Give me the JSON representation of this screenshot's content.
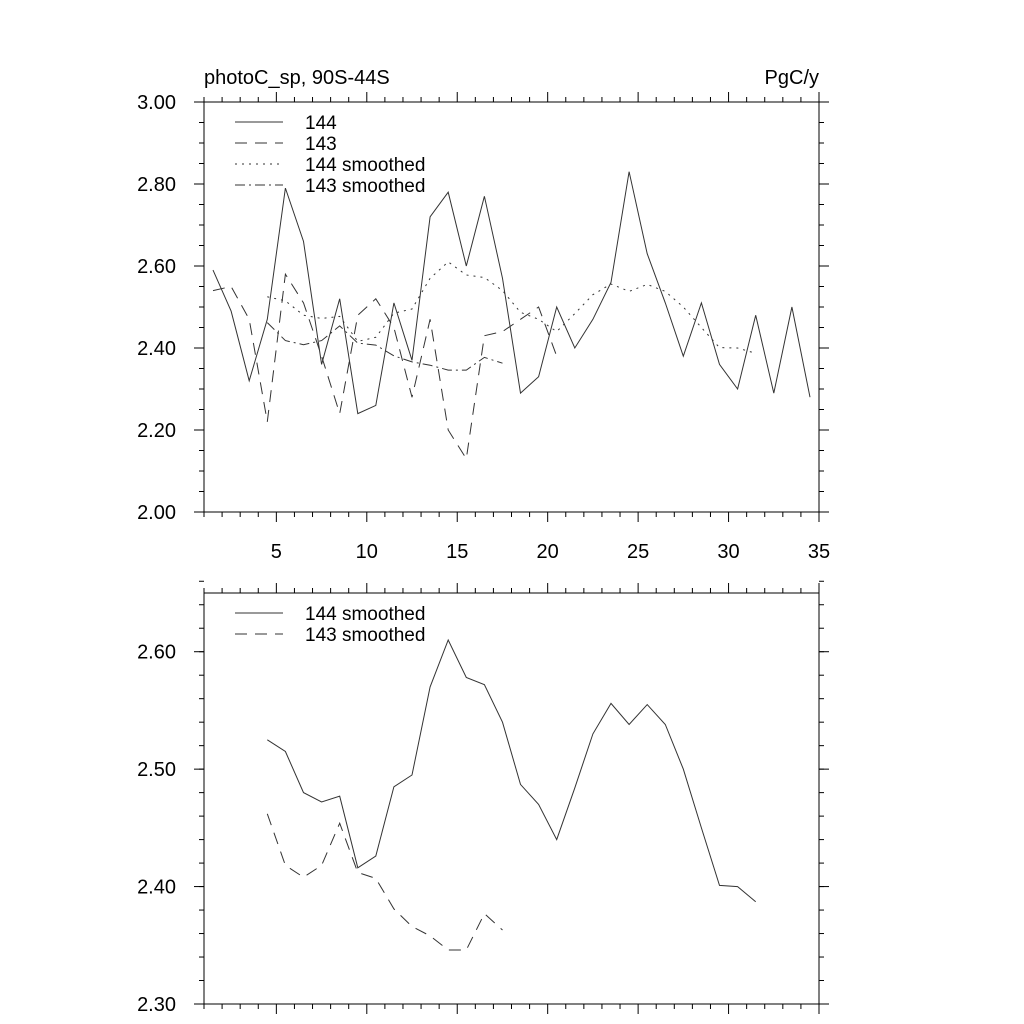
{
  "chart_data": [
    {
      "type": "line",
      "title_left": "photoC_sp, 90S-44S",
      "title_right": "PgC/y",
      "xlim": [
        1,
        35
      ],
      "ylim": [
        2.0,
        3.0
      ],
      "xticks": [
        5,
        10,
        15,
        20,
        25,
        30,
        35
      ],
      "xtick_labels": [
        "5",
        "10",
        "15",
        "20",
        "25",
        "30",
        "35"
      ],
      "yticks": [
        2.0,
        2.2,
        2.4,
        2.6,
        2.8,
        3.0
      ],
      "ytick_labels": [
        "2.00",
        "2.20",
        "2.40",
        "2.60",
        "2.80",
        "3.00"
      ],
      "legend_position": "top-left",
      "series": [
        {
          "name": "144",
          "style": "solid",
          "x": [
            1.5,
            2.5,
            3.5,
            4.5,
            5.5,
            6.5,
            7.5,
            8.5,
            9.5,
            10.5,
            11.5,
            12.5,
            13.5,
            14.5,
            15.5,
            16.5,
            17.5,
            18.5,
            19.5,
            20.5,
            21.5,
            22.5,
            23.5,
            24.5,
            25.5,
            26.5,
            27.5,
            28.5,
            29.5,
            30.5,
            31.5,
            32.5,
            33.5,
            34.5
          ],
          "y": [
            2.59,
            2.49,
            2.32,
            2.47,
            2.79,
            2.66,
            2.36,
            2.52,
            2.24,
            2.26,
            2.51,
            2.37,
            2.72,
            2.78,
            2.6,
            2.77,
            2.57,
            2.29,
            2.33,
            2.5,
            2.4,
            2.47,
            2.56,
            2.83,
            2.63,
            2.51,
            2.38,
            2.51,
            2.36,
            2.3,
            2.48,
            2.29,
            2.5,
            2.28
          ]
        },
        {
          "name": "143",
          "style": "dashed",
          "x": [
            1.5,
            2.5,
            3.5,
            4.5,
            5.5,
            6.5,
            7.5,
            8.5,
            9.5,
            10.5,
            11.5,
            12.5,
            13.5,
            14.5,
            15.5,
            16.5,
            17.5,
            18.5,
            19.5,
            20.5
          ],
          "y": [
            2.54,
            2.55,
            2.47,
            2.22,
            2.58,
            2.51,
            2.38,
            2.24,
            2.48,
            2.52,
            2.45,
            2.28,
            2.47,
            2.2,
            2.13,
            2.43,
            2.44,
            2.47,
            2.5,
            2.38
          ]
        },
        {
          "name": "144 smoothed",
          "style": "dotted",
          "x": [
            4.5,
            5.5,
            6.5,
            7.5,
            8.5,
            9.5,
            10.5,
            11.5,
            12.5,
            13.5,
            14.5,
            15.5,
            16.5,
            17.5,
            18.5,
            19.5,
            20.5,
            21.5,
            22.5,
            23.5,
            24.5,
            25.5,
            26.5,
            27.5,
            28.5,
            29.5,
            30.5,
            31.5
          ],
          "y": [
            2.525,
            2.515,
            2.48,
            2.472,
            2.477,
            2.416,
            2.426,
            2.485,
            2.495,
            2.57,
            2.61,
            2.578,
            2.572,
            2.54,
            2.487,
            2.47,
            2.44,
            2.484,
            2.53,
            2.556,
            2.538,
            2.555,
            2.538,
            2.5,
            2.45,
            2.401,
            2.4,
            2.387
          ]
        },
        {
          "name": "143 smoothed",
          "style": "dashdot",
          "x": [
            4.5,
            5.5,
            6.5,
            7.5,
            8.5,
            9.5,
            10.5,
            11.5,
            12.5,
            13.5,
            14.5,
            15.5,
            16.5,
            17.5
          ],
          "y": [
            2.462,
            2.418,
            2.408,
            2.418,
            2.454,
            2.412,
            2.407,
            2.381,
            2.366,
            2.358,
            2.346,
            2.346,
            2.377,
            2.363
          ]
        }
      ]
    },
    {
      "type": "line",
      "xlim": [
        1,
        35
      ],
      "ylim": [
        2.3,
        2.65
      ],
      "xticks": [
        5,
        10,
        15,
        20,
        25,
        30,
        35
      ],
      "yticks": [
        2.3,
        2.4,
        2.5,
        2.6
      ],
      "ytick_labels": [
        "2.30",
        "2.40",
        "2.50",
        "2.60"
      ],
      "legend_position": "top-left",
      "series": [
        {
          "name": "144 smoothed",
          "style": "solid",
          "x": [
            4.5,
            5.5,
            6.5,
            7.5,
            8.5,
            9.5,
            10.5,
            11.5,
            12.5,
            13.5,
            14.5,
            15.5,
            16.5,
            17.5,
            18.5,
            19.5,
            20.5,
            21.5,
            22.5,
            23.5,
            24.5,
            25.5,
            26.5,
            27.5,
            28.5,
            29.5,
            30.5,
            31.5
          ],
          "y": [
            2.525,
            2.515,
            2.48,
            2.472,
            2.477,
            2.416,
            2.426,
            2.485,
            2.495,
            2.57,
            2.61,
            2.578,
            2.572,
            2.54,
            2.487,
            2.47,
            2.44,
            2.484,
            2.53,
            2.556,
            2.538,
            2.555,
            2.538,
            2.5,
            2.45,
            2.401,
            2.4,
            2.387
          ]
        },
        {
          "name": "143 smoothed",
          "style": "dashed",
          "x": [
            4.5,
            5.5,
            6.5,
            7.5,
            8.5,
            9.5,
            10.5,
            11.5,
            12.5,
            13.5,
            14.5,
            15.5,
            16.5,
            17.5
          ],
          "y": [
            2.462,
            2.418,
            2.408,
            2.418,
            2.454,
            2.412,
            2.407,
            2.381,
            2.366,
            2.358,
            2.346,
            2.346,
            2.377,
            2.363
          ]
        }
      ]
    }
  ]
}
